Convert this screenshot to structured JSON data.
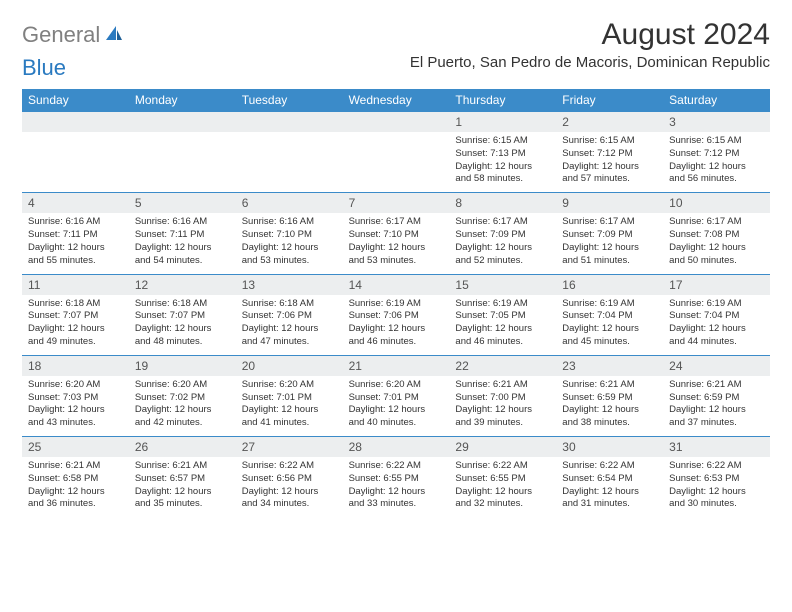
{
  "logo": {
    "gray": "General",
    "blue": "Blue"
  },
  "title": "August 2024",
  "location": "El Puerto, San Pedro de Macoris, Dominican Republic",
  "colors": {
    "header_bg": "#3b8bc9",
    "header_text": "#ffffff",
    "daynum_bg": "#eceeef",
    "border": "#3b8bc9",
    "logo_gray": "#808080",
    "logo_blue": "#2a7ac0",
    "text": "#333333"
  },
  "dayNames": [
    "Sunday",
    "Monday",
    "Tuesday",
    "Wednesday",
    "Thursday",
    "Friday",
    "Saturday"
  ],
  "weeks": [
    [
      {
        "num": "",
        "lines": []
      },
      {
        "num": "",
        "lines": []
      },
      {
        "num": "",
        "lines": []
      },
      {
        "num": "",
        "lines": []
      },
      {
        "num": "1",
        "lines": [
          "Sunrise: 6:15 AM",
          "Sunset: 7:13 PM",
          "Daylight: 12 hours and 58 minutes."
        ]
      },
      {
        "num": "2",
        "lines": [
          "Sunrise: 6:15 AM",
          "Sunset: 7:12 PM",
          "Daylight: 12 hours and 57 minutes."
        ]
      },
      {
        "num": "3",
        "lines": [
          "Sunrise: 6:15 AM",
          "Sunset: 7:12 PM",
          "Daylight: 12 hours and 56 minutes."
        ]
      }
    ],
    [
      {
        "num": "4",
        "lines": [
          "Sunrise: 6:16 AM",
          "Sunset: 7:11 PM",
          "Daylight: 12 hours and 55 minutes."
        ]
      },
      {
        "num": "5",
        "lines": [
          "Sunrise: 6:16 AM",
          "Sunset: 7:11 PM",
          "Daylight: 12 hours and 54 minutes."
        ]
      },
      {
        "num": "6",
        "lines": [
          "Sunrise: 6:16 AM",
          "Sunset: 7:10 PM",
          "Daylight: 12 hours and 53 minutes."
        ]
      },
      {
        "num": "7",
        "lines": [
          "Sunrise: 6:17 AM",
          "Sunset: 7:10 PM",
          "Daylight: 12 hours and 53 minutes."
        ]
      },
      {
        "num": "8",
        "lines": [
          "Sunrise: 6:17 AM",
          "Sunset: 7:09 PM",
          "Daylight: 12 hours and 52 minutes."
        ]
      },
      {
        "num": "9",
        "lines": [
          "Sunrise: 6:17 AM",
          "Sunset: 7:09 PM",
          "Daylight: 12 hours and 51 minutes."
        ]
      },
      {
        "num": "10",
        "lines": [
          "Sunrise: 6:17 AM",
          "Sunset: 7:08 PM",
          "Daylight: 12 hours and 50 minutes."
        ]
      }
    ],
    [
      {
        "num": "11",
        "lines": [
          "Sunrise: 6:18 AM",
          "Sunset: 7:07 PM",
          "Daylight: 12 hours and 49 minutes."
        ]
      },
      {
        "num": "12",
        "lines": [
          "Sunrise: 6:18 AM",
          "Sunset: 7:07 PM",
          "Daylight: 12 hours and 48 minutes."
        ]
      },
      {
        "num": "13",
        "lines": [
          "Sunrise: 6:18 AM",
          "Sunset: 7:06 PM",
          "Daylight: 12 hours and 47 minutes."
        ]
      },
      {
        "num": "14",
        "lines": [
          "Sunrise: 6:19 AM",
          "Sunset: 7:06 PM",
          "Daylight: 12 hours and 46 minutes."
        ]
      },
      {
        "num": "15",
        "lines": [
          "Sunrise: 6:19 AM",
          "Sunset: 7:05 PM",
          "Daylight: 12 hours and 46 minutes."
        ]
      },
      {
        "num": "16",
        "lines": [
          "Sunrise: 6:19 AM",
          "Sunset: 7:04 PM",
          "Daylight: 12 hours and 45 minutes."
        ]
      },
      {
        "num": "17",
        "lines": [
          "Sunrise: 6:19 AM",
          "Sunset: 7:04 PM",
          "Daylight: 12 hours and 44 minutes."
        ]
      }
    ],
    [
      {
        "num": "18",
        "lines": [
          "Sunrise: 6:20 AM",
          "Sunset: 7:03 PM",
          "Daylight: 12 hours and 43 minutes."
        ]
      },
      {
        "num": "19",
        "lines": [
          "Sunrise: 6:20 AM",
          "Sunset: 7:02 PM",
          "Daylight: 12 hours and 42 minutes."
        ]
      },
      {
        "num": "20",
        "lines": [
          "Sunrise: 6:20 AM",
          "Sunset: 7:01 PM",
          "Daylight: 12 hours and 41 minutes."
        ]
      },
      {
        "num": "21",
        "lines": [
          "Sunrise: 6:20 AM",
          "Sunset: 7:01 PM",
          "Daylight: 12 hours and 40 minutes."
        ]
      },
      {
        "num": "22",
        "lines": [
          "Sunrise: 6:21 AM",
          "Sunset: 7:00 PM",
          "Daylight: 12 hours and 39 minutes."
        ]
      },
      {
        "num": "23",
        "lines": [
          "Sunrise: 6:21 AM",
          "Sunset: 6:59 PM",
          "Daylight: 12 hours and 38 minutes."
        ]
      },
      {
        "num": "24",
        "lines": [
          "Sunrise: 6:21 AM",
          "Sunset: 6:59 PM",
          "Daylight: 12 hours and 37 minutes."
        ]
      }
    ],
    [
      {
        "num": "25",
        "lines": [
          "Sunrise: 6:21 AM",
          "Sunset: 6:58 PM",
          "Daylight: 12 hours and 36 minutes."
        ]
      },
      {
        "num": "26",
        "lines": [
          "Sunrise: 6:21 AM",
          "Sunset: 6:57 PM",
          "Daylight: 12 hours and 35 minutes."
        ]
      },
      {
        "num": "27",
        "lines": [
          "Sunrise: 6:22 AM",
          "Sunset: 6:56 PM",
          "Daylight: 12 hours and 34 minutes."
        ]
      },
      {
        "num": "28",
        "lines": [
          "Sunrise: 6:22 AM",
          "Sunset: 6:55 PM",
          "Daylight: 12 hours and 33 minutes."
        ]
      },
      {
        "num": "29",
        "lines": [
          "Sunrise: 6:22 AM",
          "Sunset: 6:55 PM",
          "Daylight: 12 hours and 32 minutes."
        ]
      },
      {
        "num": "30",
        "lines": [
          "Sunrise: 6:22 AM",
          "Sunset: 6:54 PM",
          "Daylight: 12 hours and 31 minutes."
        ]
      },
      {
        "num": "31",
        "lines": [
          "Sunrise: 6:22 AM",
          "Sunset: 6:53 PM",
          "Daylight: 12 hours and 30 minutes."
        ]
      }
    ]
  ]
}
